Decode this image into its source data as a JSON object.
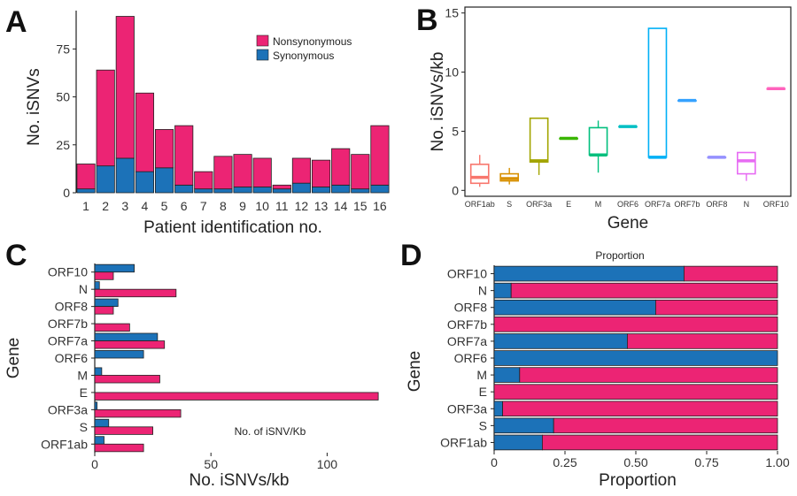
{
  "colors": {
    "nonsynonymous": "#ec2474",
    "synonymous": "#1c72b8"
  },
  "chart_data": [
    {
      "panel": "A",
      "type": "bar",
      "stacked": true,
      "xlabel": "Patient identification no.",
      "ylabel": "No. iSNVs",
      "categories": [
        "1",
        "2",
        "3",
        "4",
        "5",
        "6",
        "7",
        "8",
        "9",
        "10",
        "11",
        "12",
        "13",
        "14",
        "15",
        "16"
      ],
      "series": [
        {
          "name": "Synonymous",
          "values": [
            2,
            14,
            18,
            11,
            13,
            4,
            2,
            2,
            3,
            3,
            2,
            5,
            3,
            4,
            2,
            4
          ]
        },
        {
          "name": "Nonsynonymous",
          "values": [
            13,
            50,
            74,
            41,
            20,
            31,
            9,
            17,
            17,
            15,
            2,
            13,
            14,
            19,
            18,
            31
          ]
        }
      ],
      "legend": [
        "Nonsynonymous",
        "Synonymous"
      ],
      "yticks": [
        0,
        25,
        50,
        75
      ],
      "ylim": [
        0,
        95
      ]
    },
    {
      "panel": "B",
      "type": "box",
      "xlabel": "Gene",
      "ylabel": "No. iSNVs/kb",
      "categories": [
        "ORF1ab",
        "S",
        "ORF3a",
        "E",
        "M",
        "ORF6",
        "ORF7a",
        "ORF7b",
        "ORF8",
        "N",
        "ORF10"
      ],
      "boxes": [
        {
          "gene": "ORF1ab",
          "color": "#f8766d",
          "min": 0.3,
          "q1": 0.6,
          "median": 1.1,
          "q3": 2.2,
          "max": 3.0
        },
        {
          "gene": "S",
          "color": "#d89000",
          "min": 0.5,
          "q1": 0.8,
          "median": 1.0,
          "q3": 1.4,
          "max": 1.9
        },
        {
          "gene": "ORF3a",
          "color": "#a3a500",
          "min": 1.3,
          "q1": 2.4,
          "median": 2.5,
          "q3": 6.1,
          "max": 6.1
        },
        {
          "gene": "E",
          "color": "#39b600",
          "min": 4.4,
          "q1": 4.4,
          "median": 4.4,
          "q3": 4.4,
          "max": 4.4
        },
        {
          "gene": "M",
          "color": "#00bf7d",
          "min": 1.5,
          "q1": 3.0,
          "median": 3.0,
          "q3": 5.3,
          "max": 5.9
        },
        {
          "gene": "ORF6",
          "color": "#00bfc4",
          "min": 5.4,
          "q1": 5.4,
          "median": 5.4,
          "q3": 5.4,
          "max": 5.4
        },
        {
          "gene": "ORF7a",
          "color": "#00b0f6",
          "min": 2.8,
          "q1": 2.8,
          "median": 2.8,
          "q3": 13.7,
          "max": 13.7
        },
        {
          "gene": "ORF7b",
          "color": "#35a2ff",
          "min": 7.6,
          "q1": 7.6,
          "median": 7.6,
          "q3": 7.6,
          "max": 7.6
        },
        {
          "gene": "ORF8",
          "color": "#9590ff",
          "min": 2.8,
          "q1": 2.8,
          "median": 2.8,
          "q3": 2.8,
          "max": 2.8
        },
        {
          "gene": "N",
          "color": "#e76bf3",
          "min": 0.8,
          "q1": 1.4,
          "median": 2.5,
          "q3": 3.2,
          "max": 3.2
        },
        {
          "gene": "ORF10",
          "color": "#ff62bc",
          "min": 8.6,
          "q1": 8.6,
          "median": 8.6,
          "q3": 8.6,
          "max": 8.6
        }
      ],
      "yticks": [
        0,
        5,
        10,
        15
      ],
      "ylim": [
        -0.5,
        15.5
      ]
    },
    {
      "panel": "C",
      "type": "bar",
      "orientation": "horizontal",
      "xlabel": "No. iSNVs/kb",
      "ylabel": "Gene",
      "annotation": "No. of iSNV/Kb",
      "categories": [
        "ORF1ab",
        "S",
        "ORF3a",
        "E",
        "M",
        "ORF6",
        "ORF7a",
        "ORF7b",
        "ORF8",
        "N",
        "ORF10"
      ],
      "series": [
        {
          "name": "Synonymous",
          "values": [
            4,
            6,
            1,
            0,
            3,
            21,
            27,
            0,
            10,
            2,
            17
          ]
        },
        {
          "name": "Nonsynonymous",
          "values": [
            21,
            25,
            37,
            122,
            28,
            0,
            30,
            15,
            8,
            35,
            8
          ]
        }
      ],
      "xticks": [
        0,
        50,
        100
      ],
      "xlim": [
        0,
        125
      ]
    },
    {
      "panel": "D",
      "type": "bar",
      "orientation": "horizontal",
      "stacked": true,
      "title": "Proportion",
      "xlabel": "Proportion",
      "ylabel": "Gene",
      "categories": [
        "ORF1ab",
        "S",
        "ORF3a",
        "E",
        "M",
        "ORF6",
        "ORF7a",
        "ORF7b",
        "ORF8",
        "N",
        "ORF10"
      ],
      "series": [
        {
          "name": "Synonymous",
          "values": [
            0.17,
            0.21,
            0.03,
            0.0,
            0.09,
            1.0,
            0.47,
            0.0,
            0.57,
            0.06,
            0.67
          ]
        },
        {
          "name": "Nonsynonymous",
          "values": [
            0.83,
            0.79,
            0.97,
            1.0,
            0.91,
            0.0,
            0.53,
            1.0,
            0.43,
            0.94,
            0.33
          ]
        }
      ],
      "xticks": [
        "0",
        "0.25",
        "0.50",
        "0.75",
        "1.00"
      ],
      "xlim": [
        0,
        1
      ]
    }
  ]
}
